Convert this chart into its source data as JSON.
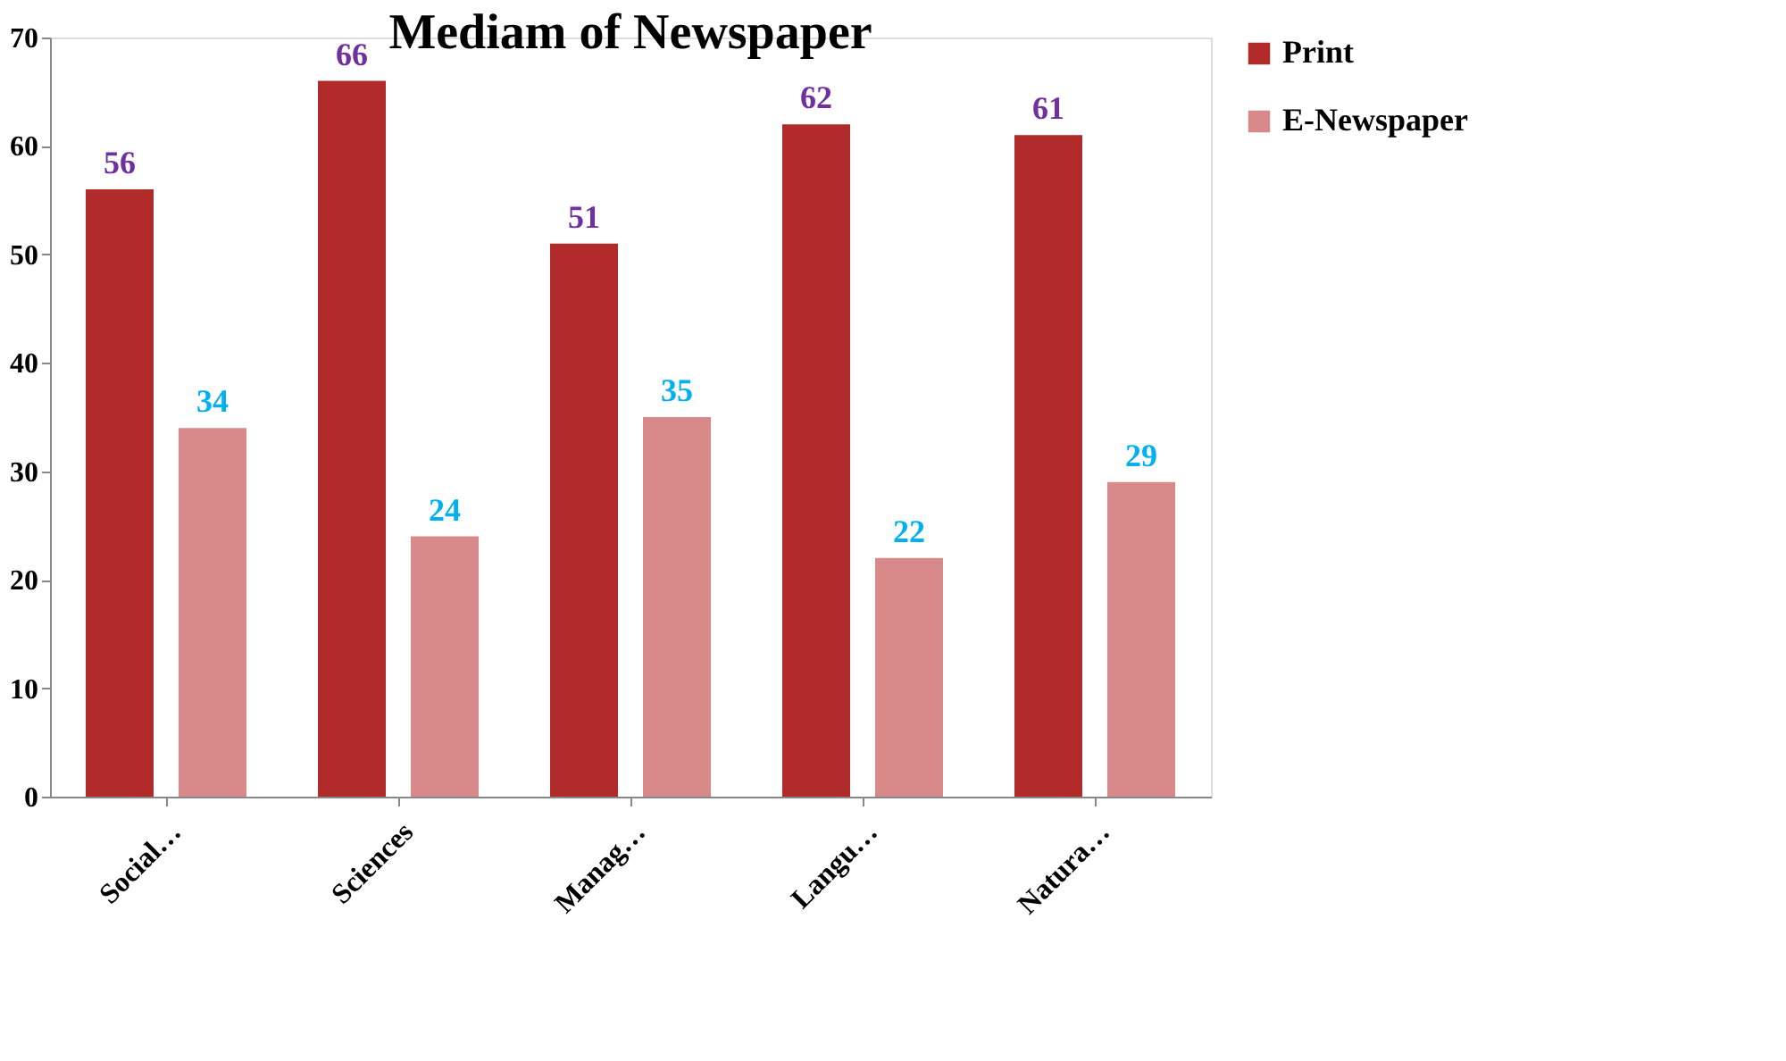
{
  "chart_data": {
    "type": "bar",
    "title": "Mediam of Newspaper",
    "categories": [
      "Social…",
      "Sciences",
      "Manag…",
      "Langu…",
      "Natura…"
    ],
    "series": [
      {
        "name": "Print",
        "color": "#b22b2b",
        "values": [
          56,
          66,
          51,
          62,
          61
        ]
      },
      {
        "name": "E-Newspaper",
        "color": "#d88a8a",
        "values": [
          34,
          24,
          35,
          22,
          29
        ]
      }
    ],
    "ylim": [
      0,
      70
    ],
    "yticks": [
      0,
      10,
      20,
      30,
      40,
      50,
      60,
      70
    ],
    "grid": false,
    "legend": "right",
    "data_labels": true
  }
}
